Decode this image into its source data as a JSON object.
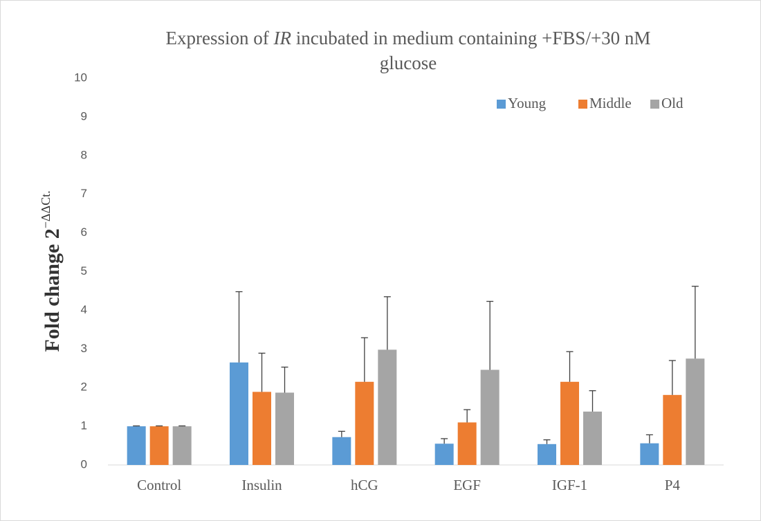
{
  "chart_data": {
    "type": "bar",
    "title": [
      "Expression of ",
      "IR",
      " incubated in medium containing +FBS/+30 nM",
      "glucose"
    ],
    "title_italic_part": 1,
    "ylabel": "Fold change 2",
    "ylabel_superscript": "−ΔΔCt.",
    "categories": [
      "Control",
      "Insulin",
      "hCG",
      "EGF",
      "IGF-1",
      "P4"
    ],
    "series": [
      {
        "name": "Young",
        "color": "#5b9bd5",
        "values": [
          1,
          2.65,
          0.72,
          0.55,
          0.54,
          0.56
        ],
        "errors": [
          0.01,
          1.83,
          0.15,
          0.13,
          0.11,
          0.22
        ]
      },
      {
        "name": "Middle",
        "color": "#ed7d31",
        "values": [
          1,
          1.89,
          2.15,
          1.1,
          2.15,
          1.81
        ],
        "errors": [
          0.01,
          1.0,
          1.14,
          0.33,
          0.78,
          0.89
        ]
      },
      {
        "name": "Old",
        "color": "#a5a5a5",
        "values": [
          1,
          1.87,
          2.98,
          2.46,
          1.38,
          2.75
        ],
        "errors": [
          0.01,
          0.66,
          1.37,
          1.77,
          0.54,
          1.87
        ]
      }
    ],
    "ylim": [
      0,
      10
    ],
    "yticks": [
      0,
      1,
      2,
      3,
      4,
      5,
      6,
      7,
      8,
      9,
      10
    ],
    "grid": false,
    "legend": "top-right"
  }
}
